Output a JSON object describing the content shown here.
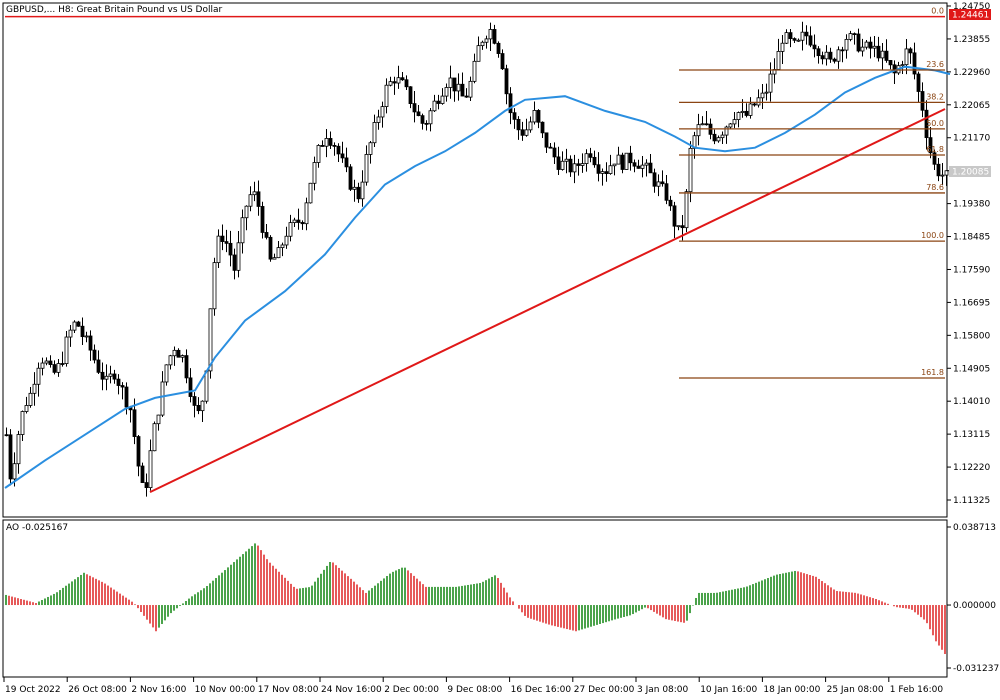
{
  "window": {
    "symbol_title": "GBPUSD,... H8:  Great Britain Pound vs US Dollar",
    "current_price_tag": "1.24461",
    "bid_price_tag": "1.20085"
  },
  "price_axis": {
    "ticks": [
      "1.24750",
      "1.23855",
      "1.22960",
      "1.22065",
      "1.21170",
      "1.20275",
      "1.19380",
      "1.18485",
      "1.17590",
      "1.16695",
      "1.15800",
      "1.14905",
      "1.14010",
      "1.13115",
      "1.12220",
      "1.11325"
    ]
  },
  "time_axis": {
    "ticks": [
      "19 Oct 2022",
      "26 Oct 08:00",
      "2 Nov 16:00",
      "10 Nov 00:00",
      "17 Nov 08:00",
      "24 Nov 16:00",
      "2 Dec 00:00",
      "9 Dec 08:00",
      "16 Dec 16:00",
      "27 Dec 00:00",
      "3 Jan 08:00",
      "10 Jan 16:00",
      "18 Jan 00:00",
      "25 Jan 08:00",
      "1 Feb 16:00"
    ]
  },
  "fibonacci": {
    "levels": [
      {
        "label": "0.0",
        "price": 1.2446
      },
      {
        "label": "23.6",
        "price": 1.2301
      },
      {
        "label": "38.2",
        "price": 1.2213
      },
      {
        "label": "50.0",
        "price": 1.2141
      },
      {
        "label": "61.8",
        "price": 1.207
      },
      {
        "label": "78.6",
        "price": 1.1967
      },
      {
        "label": "100.0",
        "price": 1.1836
      },
      {
        "label": "161.8",
        "price": 1.1464
      }
    ]
  },
  "indicator": {
    "name_value": "AO -0.025167",
    "ticks": [
      "0.038713",
      "0.000000",
      "-0.031237"
    ]
  },
  "colors": {
    "bullish_bar": "#1e8c1e",
    "bearish_bar": "#e03030",
    "moving_average": "#2b8fe0",
    "trend_line": "#e01818",
    "fibonacci": "#8b4513",
    "price_tag": "#e01818"
  },
  "chart_data": {
    "type": "line",
    "x": [
      "19 Oct 2022",
      "26 Oct 08:00",
      "2 Nov 16:00",
      "10 Nov 00:00",
      "17 Nov 08:00",
      "24 Nov 16:00",
      "2 Dec 00:00",
      "9 Dec 08:00",
      "16 Dec 16:00",
      "27 Dec 00:00",
      "3 Jan 08:00",
      "10 Jan 16:00",
      "18 Jan 00:00",
      "25 Jan 08:00",
      "1 Feb 16:00"
    ],
    "series": [
      {
        "values": [
          1.131,
          1.162,
          1.118,
          1.138,
          1.212,
          1.2,
          1.232,
          1.234,
          1.212,
          1.204,
          1.194,
          1.214,
          1.236,
          1.235,
          1.2
        ]
      },
      {
        "values": [
          1.118,
          1.132,
          1.141,
          1.142,
          1.17,
          1.184,
          1.2,
          1.214,
          1.222,
          1.213,
          1.208,
          1.209,
          1.218,
          1.227,
          1.23
        ]
      }
    ],
    "ylim": [
      1.1088,
      1.2475
    ],
    "grid": false
  }
}
